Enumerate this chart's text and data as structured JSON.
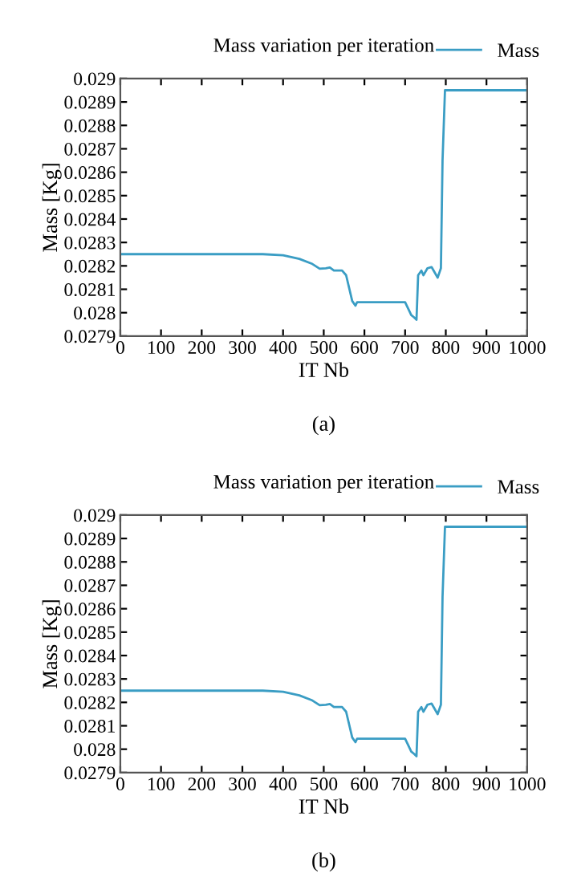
{
  "chart_data": [
    {
      "type": "line",
      "title": "Mass variation per iteration",
      "xlabel": "IT Nb",
      "ylabel": "Mass [Kg]",
      "annotations": [
        "(a)"
      ],
      "legend": "top right",
      "grid": false,
      "xlim": [
        0,
        1000
      ],
      "xticks": [
        0,
        100,
        200,
        300,
        400,
        500,
        600,
        700,
        800,
        900,
        1000
      ],
      "ylim": [
        0.0279,
        0.029
      ],
      "yticks": [
        0.0279,
        0.028,
        0.0281,
        0.0282,
        0.0283,
        0.0284,
        0.0285,
        0.0286,
        0.0287,
        0.0288,
        0.0289,
        0.029
      ],
      "series": [
        {
          "name": "Mass",
          "color": "#3a9dc4",
          "x": [
            0,
            350,
            400,
            440,
            470,
            490,
            505,
            515,
            525,
            545,
            555,
            570,
            578,
            582,
            590,
            700,
            715,
            722,
            728,
            732,
            740,
            745,
            755,
            765,
            780,
            788,
            792,
            798,
            1000
          ],
          "values": [
            0.02825,
            0.02825,
            0.028245,
            0.02823,
            0.02821,
            0.028188,
            0.02819,
            0.028193,
            0.02818,
            0.02818,
            0.02816,
            0.02805,
            0.02803,
            0.028045,
            0.028045,
            0.028045,
            0.02799,
            0.02798,
            0.02797,
            0.02816,
            0.02818,
            0.02816,
            0.02819,
            0.028195,
            0.02815,
            0.02819,
            0.02865,
            0.02895,
            0.02895
          ]
        }
      ]
    },
    {
      "type": "line",
      "title": "Mass variation per iteration",
      "xlabel": "IT Nb",
      "ylabel": "Mass [Kg]",
      "annotations": [
        "(b)"
      ],
      "legend": "top right",
      "grid": false,
      "xlim": [
        0,
        1000
      ],
      "xticks": [
        0,
        100,
        200,
        300,
        400,
        500,
        600,
        700,
        800,
        900,
        1000
      ],
      "ylim": [
        0.0279,
        0.029
      ],
      "yticks": [
        0.0279,
        0.028,
        0.0281,
        0.0282,
        0.0283,
        0.0284,
        0.0285,
        0.0286,
        0.0287,
        0.0288,
        0.0289,
        0.029
      ],
      "series": [
        {
          "name": "Mass",
          "color": "#3a9dc4",
          "x": [
            0,
            350,
            400,
            440,
            470,
            490,
            505,
            515,
            525,
            545,
            555,
            570,
            578,
            582,
            590,
            700,
            715,
            722,
            728,
            732,
            740,
            745,
            755,
            765,
            780,
            788,
            792,
            798,
            1000
          ],
          "values": [
            0.02825,
            0.02825,
            0.028245,
            0.02823,
            0.02821,
            0.028188,
            0.02819,
            0.028193,
            0.02818,
            0.02818,
            0.02816,
            0.02805,
            0.02803,
            0.028045,
            0.028045,
            0.028045,
            0.02799,
            0.02798,
            0.02797,
            0.02816,
            0.02818,
            0.02816,
            0.02819,
            0.028195,
            0.02815,
            0.02819,
            0.02865,
            0.02895,
            0.02895
          ]
        }
      ]
    }
  ]
}
